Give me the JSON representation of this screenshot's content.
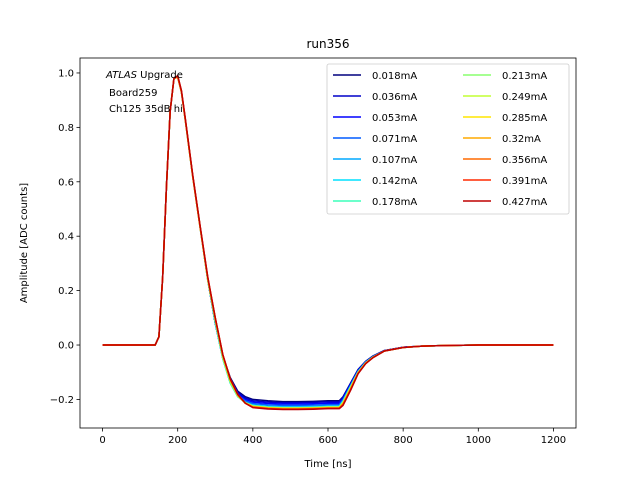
{
  "chart_data": {
    "type": "line",
    "title": "run356",
    "xlabel": "Time [ns]",
    "ylabel": "Amplitude [ADC counts]",
    "xlim": [
      -60,
      1260
    ],
    "ylim": [
      -0.305,
      1.055
    ],
    "xticks": [
      0,
      200,
      400,
      600,
      800,
      1000,
      1200
    ],
    "yticks": [
      -0.2,
      0.0,
      0.2,
      0.4,
      0.6,
      0.8,
      1.0
    ],
    "ytick_labels": [
      "−0.2",
      "0.0",
      "0.2",
      "0.4",
      "0.6",
      "0.8",
      "1.0"
    ],
    "grid": false,
    "legend": {
      "placement": "top-right",
      "columns": 2
    },
    "annotation": {
      "italic": "ATLAS",
      "line1_rest": " Upgrade",
      "line2": "Board259",
      "line3": "Ch125 35dB hi"
    },
    "x": [
      0,
      140,
      150,
      160,
      170,
      180,
      190,
      200,
      210,
      220,
      240,
      260,
      280,
      300,
      320,
      340,
      360,
      380,
      400,
      440,
      480,
      520,
      560,
      600,
      630,
      640,
      660,
      680,
      700,
      720,
      750,
      800,
      850,
      900,
      1000,
      1100,
      1200
    ],
    "series": [
      {
        "name": "0.018mA",
        "color": "#00007f",
        "values": [
          0,
          0,
          0.03,
          0.25,
          0.58,
          0.86,
          0.98,
          0.985,
          0.93,
          0.83,
          0.62,
          0.43,
          0.24,
          0.08,
          -0.04,
          -0.12,
          -0.17,
          -0.19,
          -0.2,
          -0.205,
          -0.208,
          -0.208,
          -0.207,
          -0.205,
          -0.205,
          -0.19,
          -0.14,
          -0.09,
          -0.06,
          -0.04,
          -0.02,
          -0.008,
          -0.004,
          -0.002,
          0,
          0,
          0
        ]
      },
      {
        "name": "0.036mA",
        "color": "#0000c9",
        "values": [
          0,
          0,
          0.03,
          0.25,
          0.58,
          0.86,
          0.98,
          0.985,
          0.93,
          0.83,
          0.62,
          0.43,
          0.24,
          0.08,
          -0.045,
          -0.125,
          -0.175,
          -0.195,
          -0.205,
          -0.21,
          -0.212,
          -0.212,
          -0.211,
          -0.209,
          -0.209,
          -0.193,
          -0.142,
          -0.092,
          -0.061,
          -0.041,
          -0.021,
          -0.008,
          -0.004,
          -0.002,
          0,
          0,
          0
        ]
      },
      {
        "name": "0.053mA",
        "color": "#0000ff",
        "values": [
          0,
          0,
          0.03,
          0.25,
          0.58,
          0.86,
          0.98,
          0.985,
          0.93,
          0.83,
          0.62,
          0.43,
          0.24,
          0.08,
          -0.047,
          -0.13,
          -0.18,
          -0.2,
          -0.21,
          -0.215,
          -0.217,
          -0.217,
          -0.216,
          -0.214,
          -0.214,
          -0.197,
          -0.145,
          -0.094,
          -0.062,
          -0.042,
          -0.021,
          -0.008,
          -0.004,
          -0.002,
          0,
          0,
          0
        ]
      },
      {
        "name": "0.071mA",
        "color": "#005cff",
        "values": [
          0,
          0,
          0.03,
          0.25,
          0.58,
          0.86,
          0.98,
          0.985,
          0.93,
          0.83,
          0.62,
          0.43,
          0.24,
          0.08,
          -0.05,
          -0.135,
          -0.185,
          -0.205,
          -0.215,
          -0.22,
          -0.222,
          -0.222,
          -0.221,
          -0.219,
          -0.219,
          -0.201,
          -0.148,
          -0.096,
          -0.063,
          -0.043,
          -0.022,
          -0.009,
          -0.004,
          -0.002,
          0,
          0,
          0
        ]
      },
      {
        "name": "0.107mA",
        "color": "#00a8ff",
        "values": [
          0,
          0,
          0.03,
          0.25,
          0.58,
          0.86,
          0.98,
          0.985,
          0.93,
          0.83,
          0.62,
          0.43,
          0.24,
          0.08,
          -0.05,
          -0.14,
          -0.19,
          -0.21,
          -0.22,
          -0.225,
          -0.227,
          -0.227,
          -0.226,
          -0.224,
          -0.224,
          -0.205,
          -0.151,
          -0.098,
          -0.064,
          -0.043,
          -0.022,
          -0.009,
          -0.004,
          -0.002,
          0,
          0,
          0
        ]
      },
      {
        "name": "0.142mA",
        "color": "#00e0ff",
        "values": [
          0,
          0,
          0.03,
          0.25,
          0.58,
          0.86,
          0.98,
          0.985,
          0.93,
          0.83,
          0.62,
          0.43,
          0.24,
          0.085,
          -0.05,
          -0.14,
          -0.19,
          -0.212,
          -0.222,
          -0.227,
          -0.229,
          -0.229,
          -0.228,
          -0.226,
          -0.226,
          -0.207,
          -0.152,
          -0.099,
          -0.065,
          -0.044,
          -0.022,
          -0.009,
          -0.004,
          -0.002,
          0,
          0,
          0
        ]
      },
      {
        "name": "0.178mA",
        "color": "#3cffba",
        "values": [
          0,
          0,
          0.03,
          0.25,
          0.58,
          0.86,
          0.98,
          0.985,
          0.93,
          0.83,
          0.62,
          0.43,
          0.24,
          0.085,
          -0.05,
          -0.14,
          -0.19,
          -0.213,
          -0.223,
          -0.228,
          -0.23,
          -0.23,
          -0.229,
          -0.227,
          -0.227,
          -0.208,
          -0.153,
          -0.1,
          -0.065,
          -0.044,
          -0.022,
          -0.009,
          -0.004,
          -0.002,
          0,
          0,
          0
        ]
      },
      {
        "name": "0.213mA",
        "color": "#88ff6e",
        "values": [
          0,
          0,
          0.03,
          0.25,
          0.58,
          0.86,
          0.98,
          0.985,
          0.93,
          0.83,
          0.62,
          0.43,
          0.24,
          0.09,
          -0.045,
          -0.135,
          -0.188,
          -0.212,
          -0.224,
          -0.229,
          -0.231,
          -0.231,
          -0.23,
          -0.228,
          -0.228,
          -0.21,
          -0.155,
          -0.1,
          -0.066,
          -0.044,
          -0.022,
          -0.009,
          -0.004,
          -0.002,
          0,
          0,
          0
        ]
      },
      {
        "name": "0.249mA",
        "color": "#c2ff34",
        "values": [
          0,
          0,
          0.03,
          0.25,
          0.58,
          0.86,
          0.98,
          0.985,
          0.93,
          0.83,
          0.62,
          0.43,
          0.24,
          0.09,
          -0.045,
          -0.135,
          -0.188,
          -0.213,
          -0.225,
          -0.23,
          -0.232,
          -0.232,
          -0.231,
          -0.229,
          -0.229,
          -0.212,
          -0.157,
          -0.101,
          -0.066,
          -0.045,
          -0.022,
          -0.009,
          -0.004,
          -0.002,
          0,
          0,
          0
        ]
      },
      {
        "name": "0.285mA",
        "color": "#ffe500",
        "values": [
          0,
          0,
          0.03,
          0.25,
          0.58,
          0.86,
          0.98,
          0.985,
          0.93,
          0.83,
          0.62,
          0.43,
          0.245,
          0.095,
          -0.04,
          -0.13,
          -0.185,
          -0.213,
          -0.226,
          -0.231,
          -0.233,
          -0.233,
          -0.232,
          -0.23,
          -0.23,
          -0.214,
          -0.159,
          -0.102,
          -0.067,
          -0.045,
          -0.022,
          -0.009,
          -0.004,
          -0.002,
          0,
          0,
          0
        ]
      },
      {
        "name": "0.32mA",
        "color": "#ffaa00",
        "values": [
          0,
          0,
          0.03,
          0.25,
          0.58,
          0.86,
          0.98,
          0.985,
          0.93,
          0.83,
          0.62,
          0.43,
          0.245,
          0.095,
          -0.04,
          -0.13,
          -0.185,
          -0.214,
          -0.227,
          -0.232,
          -0.234,
          -0.234,
          -0.233,
          -0.231,
          -0.231,
          -0.216,
          -0.161,
          -0.103,
          -0.067,
          -0.045,
          -0.022,
          -0.009,
          -0.004,
          -0.002,
          0,
          0,
          0
        ]
      },
      {
        "name": "0.356mA",
        "color": "#ff6a00",
        "values": [
          0,
          0,
          0.03,
          0.25,
          0.58,
          0.86,
          0.98,
          0.985,
          0.93,
          0.83,
          0.62,
          0.43,
          0.245,
          0.1,
          -0.035,
          -0.125,
          -0.182,
          -0.214,
          -0.228,
          -0.233,
          -0.235,
          -0.235,
          -0.234,
          -0.232,
          -0.232,
          -0.218,
          -0.163,
          -0.104,
          -0.068,
          -0.046,
          -0.022,
          -0.009,
          -0.004,
          -0.002,
          0,
          0,
          0
        ]
      },
      {
        "name": "0.391mA",
        "color": "#ff2a00",
        "values": [
          0,
          0,
          0.03,
          0.25,
          0.58,
          0.86,
          0.98,
          0.99,
          0.935,
          0.835,
          0.625,
          0.435,
          0.25,
          0.1,
          -0.035,
          -0.125,
          -0.182,
          -0.214,
          -0.229,
          -0.234,
          -0.236,
          -0.236,
          -0.235,
          -0.233,
          -0.233,
          -0.22,
          -0.165,
          -0.105,
          -0.068,
          -0.046,
          -0.022,
          -0.009,
          -0.004,
          -0.002,
          0,
          0,
          0
        ]
      },
      {
        "name": "0.427mA",
        "color": "#bf0000",
        "values": [
          0,
          0,
          0.03,
          0.25,
          0.58,
          0.86,
          0.98,
          0.99,
          0.935,
          0.835,
          0.625,
          0.435,
          0.25,
          0.1,
          -0.035,
          -0.125,
          -0.182,
          -0.214,
          -0.23,
          -0.235,
          -0.237,
          -0.237,
          -0.236,
          -0.234,
          -0.234,
          -0.222,
          -0.167,
          -0.106,
          -0.069,
          -0.046,
          -0.022,
          -0.009,
          -0.004,
          -0.002,
          0,
          0,
          0
        ]
      }
    ]
  }
}
